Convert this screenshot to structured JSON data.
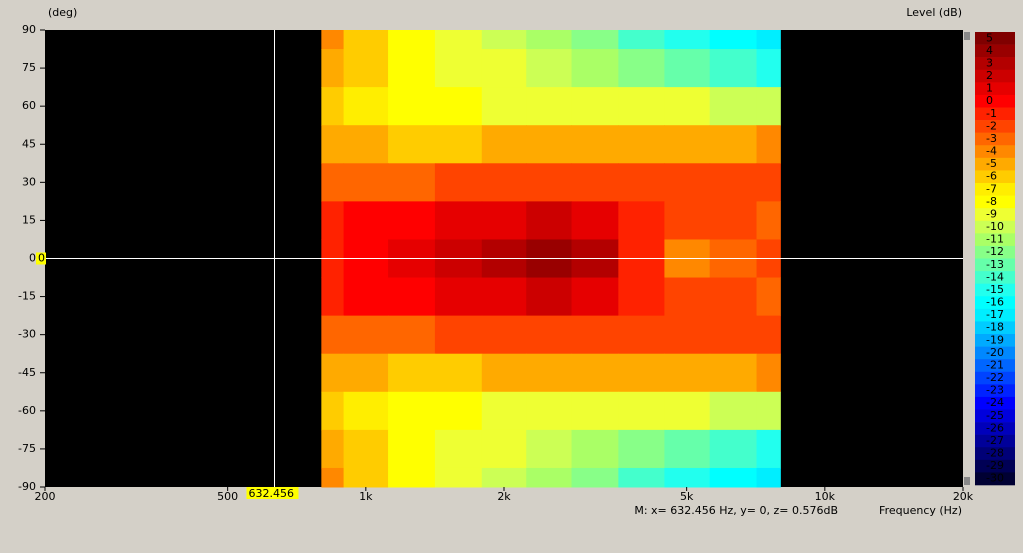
{
  "chart_data": {
    "type": "heatmap",
    "y_label": "(deg)",
    "z_label": "Level  (dB)",
    "x_label": "Frequency  (Hz)",
    "xlim": [
      200,
      20000
    ],
    "log_x": true,
    "xticks": [
      200,
      500,
      {
        "value": 1000,
        "label": "1k"
      },
      {
        "value": 2000,
        "label": "2k"
      },
      {
        "value": 5000,
        "label": "5k"
      },
      {
        "value": 10000,
        "label": "10k"
      },
      {
        "value": 20000,
        "label": "20k"
      }
    ],
    "ylim": [
      -90,
      90
    ],
    "yticks": [
      90,
      75,
      60,
      45,
      30,
      15,
      0,
      -15,
      -30,
      -45,
      -60,
      -75,
      -90
    ],
    "x": [
      800,
      1000,
      1250,
      1600,
      2000,
      2500,
      3150,
      4000,
      5000,
      6300,
      8000
    ],
    "y": [
      90,
      75,
      60,
      45,
      30,
      15,
      0,
      -15,
      -30,
      -45,
      -60,
      -75,
      -90
    ],
    "z": [
      [
        -4,
        -6,
        -8,
        -9,
        -10,
        -11,
        -12,
        -14,
        -15,
        -16,
        -17
      ],
      [
        -5,
        -6,
        -8,
        -9,
        -9,
        -10,
        -11,
        -12,
        -13,
        -14,
        -15
      ],
      [
        -6,
        -7,
        -8,
        -8,
        -9,
        -9,
        -9,
        -9,
        -9,
        -10,
        -10
      ],
      [
        -5,
        -5,
        -6,
        -6,
        -5,
        -5,
        -5,
        -5,
        -5,
        -5,
        -4
      ],
      [
        -3,
        -3,
        -3,
        -2,
        -2,
        -2,
        -2,
        -2,
        -2,
        -2,
        -2
      ],
      [
        -1,
        0,
        0,
        1,
        1,
        2,
        1,
        -1,
        -2,
        -2,
        -3
      ],
      [
        -1,
        0.5,
        1,
        2,
        3,
        4,
        3,
        -1,
        -4,
        -3,
        -2
      ],
      [
        -1,
        0,
        0,
        1,
        1,
        2,
        1,
        -1,
        -2,
        -2,
        -3
      ],
      [
        -3,
        -3,
        -3,
        -2,
        -2,
        -2,
        -2,
        -2,
        -2,
        -2,
        -2
      ],
      [
        -5,
        -5,
        -6,
        -6,
        -5,
        -5,
        -5,
        -5,
        -5,
        -5,
        -4
      ],
      [
        -6,
        -7,
        -8,
        -8,
        -9,
        -9,
        -9,
        -9,
        -9,
        -10,
        -10
      ],
      [
        -5,
        -6,
        -8,
        -9,
        -9,
        -10,
        -11,
        -12,
        -13,
        -14,
        -15
      ],
      [
        -4,
        -6,
        -8,
        -9,
        -10,
        -11,
        -12,
        -14,
        -15,
        -16,
        -17
      ]
    ],
    "colorbar": {
      "ticks": [
        5,
        4,
        3,
        2,
        1,
        0,
        -1,
        -2,
        -3,
        -4,
        -5,
        -6,
        -7,
        -8,
        -9,
        -10,
        -11,
        -12,
        -13,
        -14,
        -15,
        -16,
        -17,
        -18,
        -19,
        -20,
        -21,
        -22,
        -23,
        -24,
        -25,
        -26,
        -27,
        -28,
        -29,
        -30
      ],
      "colors": [
        "#800000",
        "#990000",
        "#b30000",
        "#cc0000",
        "#e60000",
        "#ff0000",
        "#ff2200",
        "#ff4400",
        "#ff6600",
        "#ff8800",
        "#ffaa00",
        "#ffcc00",
        "#ffee00",
        "#ffff00",
        "#eeff33",
        "#ccff55",
        "#aaff66",
        "#88ff88",
        "#66ffaa",
        "#44ffcc",
        "#22ffee",
        "#00ffff",
        "#00eeff",
        "#00ccff",
        "#00aaff",
        "#0088ff",
        "#0066ff",
        "#0044ff",
        "#0022ff",
        "#0000ff",
        "#0000dd",
        "#0000bb",
        "#000099",
        "#000077",
        "#000055",
        "#000033"
      ]
    },
    "cursor": {
      "x": 632.456,
      "y": 0
    },
    "status": "M:  x= 632.456 Hz,  y= 0, z= 0.576dB"
  }
}
